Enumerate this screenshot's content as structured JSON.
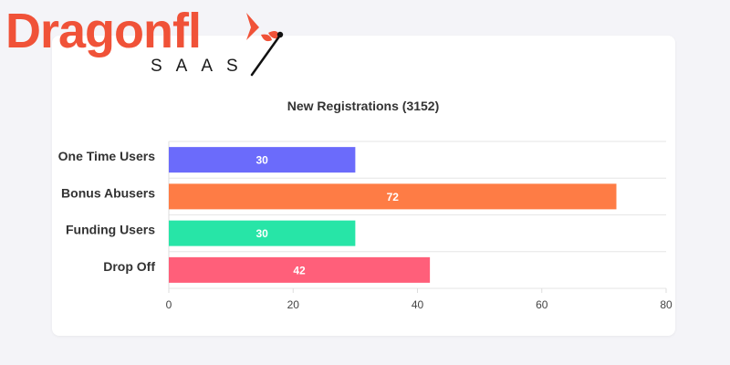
{
  "logo": {
    "word": "Dragonfl",
    "sub": "SAAS"
  },
  "colors": {
    "brand": "#f05238",
    "background": "#f4f4f8",
    "card": "#ffffff",
    "grid": "#e6e6e6",
    "text": "#333333"
  },
  "chart_data": {
    "type": "bar",
    "orientation": "horizontal",
    "title": "New Registrations (3152)",
    "categories": [
      "One Time Users",
      "Bonus Abusers",
      "Funding Users",
      "Drop Off"
    ],
    "values": [
      30,
      72,
      30,
      42
    ],
    "colors": [
      "#6b6bfb",
      "#fe7c45",
      "#27e5a7",
      "#ff5f7a"
    ],
    "xlim": [
      0,
      80
    ],
    "x_ticks": [
      0,
      20,
      40,
      60,
      80
    ],
    "data_labels": true,
    "grid": "horizontal",
    "legend": "none",
    "xlabel": "",
    "ylabel": ""
  }
}
